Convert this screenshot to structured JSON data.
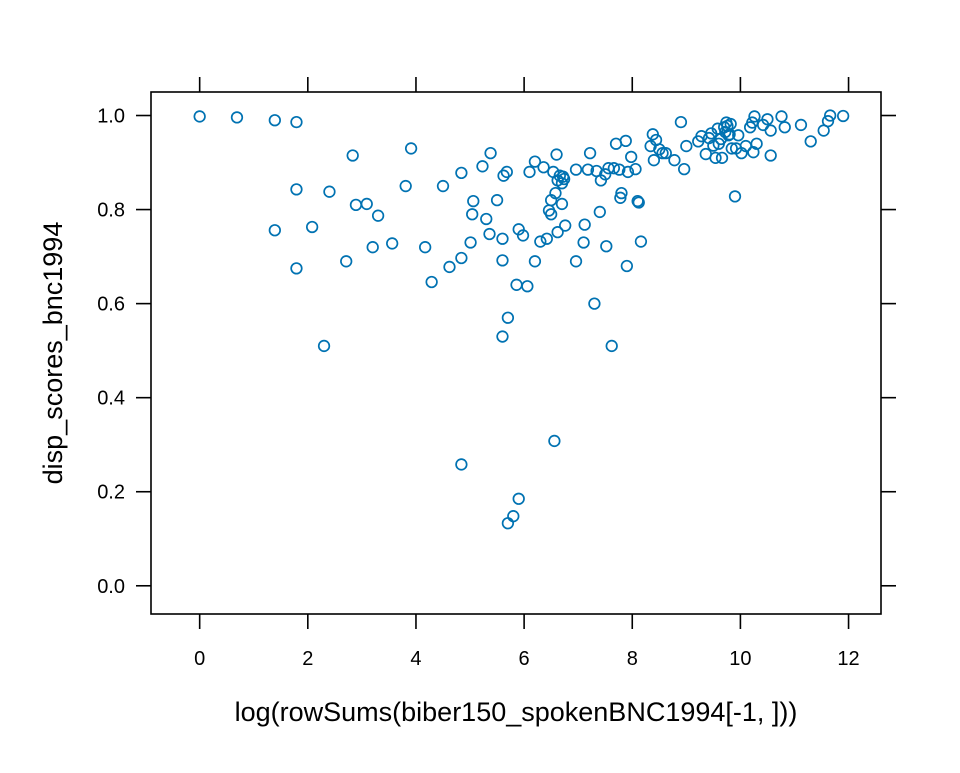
{
  "chart_data": {
    "type": "scatter",
    "title": "",
    "xlabel": "log(rowSums(biber150_spokenBNC1994[-1, ]))",
    "ylabel": "disp_scores_bnc1994",
    "xlim": [
      -0.9,
      12.6
    ],
    "ylim": [
      -0.06,
      1.05
    ],
    "xticks": [
      "0",
      "2",
      "4",
      "6",
      "8",
      "10",
      "12"
    ],
    "yticks": [
      "0.0",
      "0.2",
      "0.4",
      "0.6",
      "0.8",
      "1.0"
    ],
    "grid": false,
    "legend": "none",
    "marker": "open-circle",
    "point_color": "#0072B2",
    "points": [
      [
        0.0,
        0.998
      ],
      [
        0.69,
        0.996
      ],
      [
        1.39,
        0.99
      ],
      [
        1.79,
        0.986
      ],
      [
        1.39,
        0.756
      ],
      [
        1.79,
        0.843
      ],
      [
        1.79,
        0.675
      ],
      [
        2.08,
        0.763
      ],
      [
        2.3,
        0.51
      ],
      [
        2.4,
        0.838
      ],
      [
        2.71,
        0.69
      ],
      [
        2.83,
        0.915
      ],
      [
        2.89,
        0.81
      ],
      [
        3.09,
        0.812
      ],
      [
        3.2,
        0.72
      ],
      [
        3.3,
        0.787
      ],
      [
        3.56,
        0.728
      ],
      [
        3.81,
        0.85
      ],
      [
        3.91,
        0.93
      ],
      [
        4.17,
        0.72
      ],
      [
        4.29,
        0.646
      ],
      [
        4.5,
        0.85
      ],
      [
        4.62,
        0.678
      ],
      [
        4.84,
        0.697
      ],
      [
        4.84,
        0.878
      ],
      [
        4.84,
        0.258
      ],
      [
        5.01,
        0.73
      ],
      [
        5.04,
        0.79
      ],
      [
        5.06,
        0.818
      ],
      [
        5.23,
        0.892
      ],
      [
        5.3,
        0.78
      ],
      [
        5.36,
        0.748
      ],
      [
        5.38,
        0.92
      ],
      [
        5.5,
        0.82
      ],
      [
        5.6,
        0.738
      ],
      [
        5.6,
        0.692
      ],
      [
        5.6,
        0.53
      ],
      [
        5.62,
        0.872
      ],
      [
        5.68,
        0.88
      ],
      [
        5.7,
        0.57
      ],
      [
        5.7,
        0.133
      ],
      [
        5.8,
        0.148
      ],
      [
        5.86,
        0.64
      ],
      [
        5.9,
        0.185
      ],
      [
        5.9,
        0.758
      ],
      [
        5.98,
        0.745
      ],
      [
        6.06,
        0.637
      ],
      [
        6.1,
        0.88
      ],
      [
        6.2,
        0.902
      ],
      [
        6.2,
        0.69
      ],
      [
        6.3,
        0.732
      ],
      [
        6.36,
        0.89
      ],
      [
        6.42,
        0.738
      ],
      [
        6.46,
        0.798
      ],
      [
        6.5,
        0.79
      ],
      [
        6.5,
        0.82
      ],
      [
        6.54,
        0.88
      ],
      [
        6.56,
        0.308
      ],
      [
        6.58,
        0.835
      ],
      [
        6.6,
        0.917
      ],
      [
        6.62,
        0.862
      ],
      [
        6.62,
        0.752
      ],
      [
        6.66,
        0.872
      ],
      [
        6.7,
        0.856
      ],
      [
        6.7,
        0.812
      ],
      [
        6.72,
        0.87
      ],
      [
        6.74,
        0.865
      ],
      [
        6.76,
        0.766
      ],
      [
        6.96,
        0.69
      ],
      [
        6.96,
        0.885
      ],
      [
        7.1,
        0.73
      ],
      [
        7.12,
        0.768
      ],
      [
        7.18,
        0.885
      ],
      [
        7.22,
        0.92
      ],
      [
        7.3,
        0.6
      ],
      [
        7.34,
        0.882
      ],
      [
        7.4,
        0.795
      ],
      [
        7.42,
        0.862
      ],
      [
        7.5,
        0.875
      ],
      [
        7.52,
        0.722
      ],
      [
        7.56,
        0.888
      ],
      [
        7.62,
        0.51
      ],
      [
        7.66,
        0.888
      ],
      [
        7.7,
        0.94
      ],
      [
        7.76,
        0.885
      ],
      [
        7.78,
        0.825
      ],
      [
        7.8,
        0.835
      ],
      [
        7.88,
        0.946
      ],
      [
        7.9,
        0.68
      ],
      [
        7.92,
        0.88
      ],
      [
        7.98,
        0.912
      ],
      [
        8.06,
        0.886
      ],
      [
        8.1,
        0.818
      ],
      [
        8.12,
        0.815
      ],
      [
        8.16,
        0.732
      ],
      [
        8.34,
        0.935
      ],
      [
        8.38,
        0.96
      ],
      [
        8.4,
        0.905
      ],
      [
        8.44,
        0.948
      ],
      [
        8.5,
        0.928
      ],
      [
        8.56,
        0.92
      ],
      [
        8.62,
        0.92
      ],
      [
        8.78,
        0.905
      ],
      [
        8.9,
        0.986
      ],
      [
        8.96,
        0.886
      ],
      [
        9.0,
        0.935
      ],
      [
        9.22,
        0.945
      ],
      [
        9.28,
        0.956
      ],
      [
        9.36,
        0.918
      ],
      [
        9.42,
        0.952
      ],
      [
        9.46,
        0.962
      ],
      [
        9.5,
        0.936
      ],
      [
        9.54,
        0.91
      ],
      [
        9.58,
        0.972
      ],
      [
        9.6,
        0.94
      ],
      [
        9.64,
        0.95
      ],
      [
        9.66,
        0.91
      ],
      [
        9.7,
        0.975
      ],
      [
        9.72,
        0.965
      ],
      [
        9.74,
        0.985
      ],
      [
        9.76,
        0.978
      ],
      [
        9.78,
        0.958
      ],
      [
        9.8,
        0.96
      ],
      [
        9.82,
        0.982
      ],
      [
        9.84,
        0.93
      ],
      [
        9.9,
        0.828
      ],
      [
        9.92,
        0.93
      ],
      [
        9.96,
        0.958
      ],
      [
        10.02,
        0.92
      ],
      [
        10.1,
        0.935
      ],
      [
        10.18,
        0.975
      ],
      [
        10.22,
        0.985
      ],
      [
        10.24,
        0.922
      ],
      [
        10.26,
        0.998
      ],
      [
        10.3,
        0.94
      ],
      [
        10.42,
        0.98
      ],
      [
        10.5,
        0.992
      ],
      [
        10.56,
        0.968
      ],
      [
        10.56,
        0.915
      ],
      [
        10.76,
        0.998
      ],
      [
        10.82,
        0.975
      ],
      [
        11.12,
        0.98
      ],
      [
        11.3,
        0.945
      ],
      [
        11.54,
        0.968
      ],
      [
        11.62,
        0.988
      ],
      [
        11.66,
        1.0
      ],
      [
        11.9,
        0.999
      ]
    ]
  }
}
